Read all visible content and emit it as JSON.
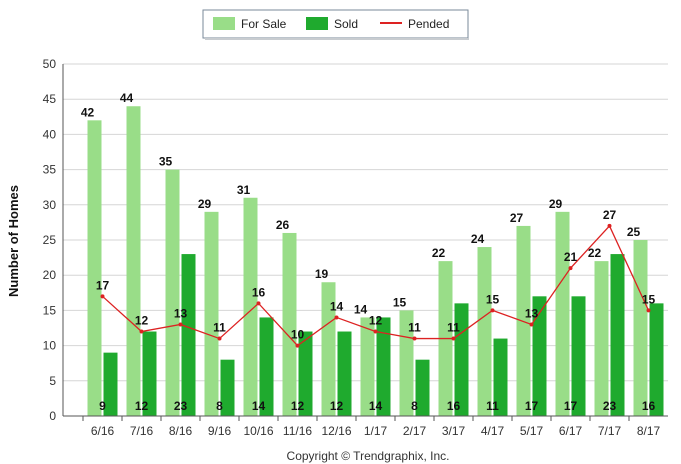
{
  "chart_data": {
    "type": "bar",
    "categories": [
      "6/16",
      "7/16",
      "8/16",
      "9/16",
      "10/16",
      "11/16",
      "12/16",
      "1/17",
      "2/17",
      "3/17",
      "4/17",
      "5/17",
      "6/17",
      "7/17",
      "8/17"
    ],
    "series": [
      {
        "name": "For Sale",
        "type": "bar",
        "color": "#99dd88",
        "values": [
          42,
          44,
          35,
          29,
          31,
          26,
          19,
          14,
          15,
          22,
          24,
          27,
          29,
          22,
          25
        ]
      },
      {
        "name": "Sold",
        "type": "bar",
        "color": "#1faa2e",
        "values": [
          9,
          12,
          23,
          8,
          14,
          12,
          12,
          14,
          8,
          16,
          11,
          17,
          17,
          23,
          16
        ]
      },
      {
        "name": "Pended",
        "type": "line",
        "color": "#dd2222",
        "values": [
          17,
          12,
          13,
          11,
          16,
          10,
          14,
          12,
          11,
          11,
          15,
          13,
          21,
          27,
          15
        ]
      }
    ],
    "ylabel": "Number of Homes",
    "xlabel": "",
    "ylim": [
      0,
      50
    ],
    "yticks": [
      0,
      5,
      10,
      15,
      20,
      25,
      30,
      35,
      40,
      45,
      50
    ],
    "grid": true,
    "legend_position": "top-center",
    "footer": "Copyright © Trendgraphix, Inc."
  }
}
